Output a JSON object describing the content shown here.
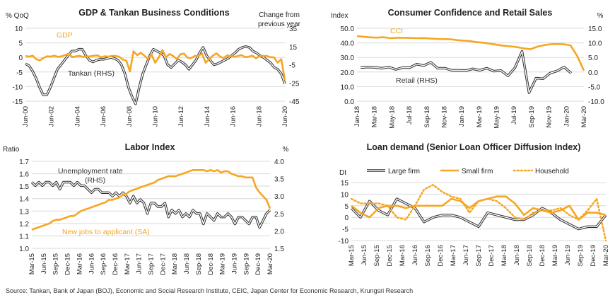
{
  "source": "Source: Tankan, Bank of Japan (BOJ), Economic and Social Research Institute, CEIC, Japan Center for Economic Research, Krungsri Research",
  "colors": {
    "orange": "#F5A623",
    "black": "#2b2b2b",
    "grey": "#9a9a9a",
    "grid": "#d9d9d9"
  },
  "chart_data": [
    {
      "id": "gdp_tankan",
      "type": "line",
      "title": "GDP & Tankan Business Conditions",
      "left_axis_label": "% QoQ",
      "right_axis_label": "Change from previous year",
      "x_labels": [
        "Jun-00",
        "Jun-02",
        "Jun-04",
        "Jun-06",
        "Jun-08",
        "Jun-10",
        "Jun-12",
        "Jun-14",
        "Jun-16",
        "Jun-18",
        "Jun-20"
      ],
      "ylim_left": [
        -15,
        10
      ],
      "yticks_left": [
        10,
        5,
        0,
        -5,
        -10,
        -15
      ],
      "ylim_right": [
        -45,
        35
      ],
      "yticks_right": [
        35,
        15,
        -5,
        -25,
        -45
      ],
      "grid": "horizontal",
      "series": [
        {
          "name": "GDP",
          "axis": "left",
          "color": "orange",
          "style": "solid",
          "y": [
            0.5,
            0.3,
            0.6,
            -0.6,
            -1,
            -0.2,
            0.4,
            0.3,
            0.6,
            0.2,
            0.4,
            0.8,
            1.3,
            0.1,
            0.4,
            0.5,
            0.2,
            0.3,
            0.4,
            0.6,
            0.7,
            0.1,
            0.4,
            0.3,
            0.5,
            0.5,
            0.3,
            -0.7,
            -1.1,
            -4.8,
            2.1,
            0.8,
            1.6,
            0.6,
            -0.5,
            1,
            -1.8,
            0,
            2.6,
            0.1,
            1.2,
            0.5,
            -0.6,
            1.1,
            1.3,
            -0.1,
            -0.2,
            0.5,
            0.6,
            1.3,
            -1.8,
            -0.6,
            0.6,
            1.4,
            0.3,
            -0.2,
            0.7,
            0.5,
            0.2,
            0.5,
            0.8,
            0.1,
            0.3,
            0.6,
            -0.3,
            0.5,
            0.5,
            0.5,
            0.1,
            0,
            -1.8,
            -0.6,
            -7.9
          ]
        },
        {
          "name": "Tankan (RHS)",
          "axis": "right",
          "color": "black",
          "style": "double",
          "y": [
            -4,
            -6,
            -12,
            -20,
            -30,
            -38,
            -38,
            -30,
            -20,
            -10,
            -5,
            0,
            5,
            10,
            10,
            12,
            12,
            5,
            0,
            -2,
            0,
            1,
            1,
            2,
            3,
            2,
            0,
            -5,
            -15,
            -30,
            -40,
            -48,
            -30,
            -15,
            -5,
            5,
            12,
            10,
            8,
            5,
            -5,
            -8,
            -4,
            0,
            -2,
            -5,
            -10,
            -5,
            0,
            8,
            14,
            5,
            0,
            -5,
            -4,
            -2,
            0,
            2,
            5,
            8,
            12,
            14,
            15,
            14,
            10,
            8,
            5,
            3,
            0,
            -3,
            -8,
            -10,
            -15,
            -26
          ]
        }
      ],
      "annotations": [
        "GDP",
        "Tankan (RHS)"
      ]
    },
    {
      "id": "consumer",
      "type": "line",
      "title": "Consumer Confidence and Retail Sales",
      "left_axis_label": "Index",
      "right_axis_label": "%",
      "x_labels": [
        "Jan-18",
        "Mar-18",
        "May-18",
        "Jul-18",
        "Sep-18",
        "Nov-18",
        "Jan-19",
        "Mar-19",
        "May-19",
        "Jul-19",
        "Sep-19",
        "Nov-19",
        "Jan-20",
        "Mar-20"
      ],
      "ylim_left": [
        0,
        50
      ],
      "yticks_left": [
        "50.0",
        "40.0",
        "30.0",
        "20.0",
        "10.0",
        "0.0"
      ],
      "ylim_right": [
        -10,
        15
      ],
      "yticks_right": [
        "15.0",
        "10.0",
        "5.0",
        "0.0",
        "-5.0",
        "-10.0"
      ],
      "grid": "horizontal",
      "series": [
        {
          "name": "CCI",
          "axis": "left",
          "color": "orange",
          "style": "solid",
          "y": [
            44.6,
            44.2,
            43.8,
            43.6,
            43.9,
            43.2,
            43.5,
            43.5,
            43.4,
            43.2,
            43.3,
            43.0,
            42.7,
            42.6,
            42.5,
            41.9,
            41.5,
            41.2,
            40.5,
            40.1,
            39.4,
            38.7,
            38.0,
            37.6,
            37.1,
            36.2,
            35.7,
            37.4,
            38.4,
            39.1,
            39.2,
            39.1,
            38.3,
            30.9,
            21.0
          ]
        },
        {
          "name": "Retail (RHS)",
          "axis": "right",
          "color": "black",
          "style": "double",
          "y": [
            1.5,
            1.7,
            1.6,
            1.3,
            1.7,
            0.9,
            1.5,
            1.5,
            2.7,
            2.2,
            3.3,
            1.3,
            1.3,
            0.6,
            0.6,
            0.5,
            1.1,
            0.6,
            1.3,
            0.3,
            0.5,
            -1.3,
            1.5,
            7.1,
            -7.1,
            -2.1,
            -2.3,
            -0.4,
            0.4,
            1.7,
            -0.4
          ]
        }
      ],
      "annotations": [
        "CCI",
        "Retail (RHS)"
      ]
    },
    {
      "id": "labor",
      "type": "line",
      "title": "Labor Index",
      "left_axis_label": "Ratio",
      "right_axis_label": "%",
      "x_labels": [
        "Mar-15",
        "Jun-15",
        "Sep-15",
        "Dec-15",
        "Mar-16",
        "Jun-16",
        "Sep-16",
        "Dec-16",
        "Mar-17",
        "Jun-17",
        "Sep-17",
        "Dec-17",
        "Mar-18",
        "Jun-18",
        "Sep-18",
        "Dec-18",
        "Mar-19",
        "Jun-19",
        "Sep-19",
        "Dec-19",
        "Mar-20"
      ],
      "ylim_left": [
        1.0,
        1.7
      ],
      "yticks_left": [
        "1.7",
        "1.6",
        "1.5",
        "1.4",
        "1.3",
        "1.2",
        "1.1",
        "1.0"
      ],
      "ylim_right": [
        1.5,
        4.0
      ],
      "yticks_right": [
        "4.0",
        "3.5",
        "3.0",
        "2.5",
        "2.0",
        "1.5"
      ],
      "grid": "horizontal",
      "series": [
        {
          "name": "Unemployment rate (RHS)",
          "axis": "right",
          "color": "black",
          "style": "double",
          "y": [
            3.4,
            3.3,
            3.4,
            3.3,
            3.4,
            3.4,
            3.3,
            3.4,
            3.2,
            3.4,
            3.4,
            3.4,
            3.3,
            3.4,
            3.3,
            3.3,
            3.2,
            3.1,
            3.2,
            3.2,
            3.1,
            3.1,
            3.1,
            3.0,
            3.1,
            3.0,
            3.1,
            3.0,
            2.8,
            3.0,
            2.8,
            2.9,
            2.8,
            2.5,
            2.8,
            2.8,
            2.7,
            2.7,
            2.8,
            2.4,
            2.6,
            2.5,
            2.6,
            2.4,
            2.5,
            2.4,
            2.6,
            2.5,
            2.5,
            2.2,
            2.5,
            2.4,
            2.3,
            2.5,
            2.4,
            2.4,
            2.5,
            2.4,
            2.2,
            2.4,
            2.4,
            2.3,
            2.2,
            2.4,
            2.4,
            2.1,
            2.3,
            2.5,
            2.6
          ]
        },
        {
          "name": "New jobs to applicant (SA)",
          "axis": "left",
          "color": "orange",
          "style": "solid",
          "y": [
            1.15,
            1.16,
            1.17,
            1.18,
            1.19,
            1.2,
            1.22,
            1.23,
            1.23,
            1.24,
            1.25,
            1.26,
            1.26,
            1.28,
            1.3,
            1.31,
            1.32,
            1.33,
            1.34,
            1.35,
            1.36,
            1.37,
            1.39,
            1.39,
            1.4,
            1.41,
            1.43,
            1.44,
            1.46,
            1.47,
            1.48,
            1.49,
            1.5,
            1.51,
            1.52,
            1.53,
            1.55,
            1.56,
            1.57,
            1.58,
            1.58,
            1.58,
            1.59,
            1.6,
            1.61,
            1.62,
            1.63,
            1.63,
            1.63,
            1.63,
            1.62,
            1.63,
            1.62,
            1.63,
            1.61,
            1.62,
            1.62,
            1.6,
            1.59,
            1.58,
            1.58,
            1.57,
            1.57,
            1.57,
            1.49,
            1.45,
            1.42,
            1.39,
            1.32
          ]
        }
      ],
      "annotations": [
        "Unemployment rate",
        "(RHS)",
        "New jobs to applicant (SA)"
      ]
    },
    {
      "id": "loan",
      "type": "line",
      "title": "Loan demand (Senior Loan Officer Diffusion Index)",
      "left_axis_label": "DI",
      "x_labels": [
        "Mar-15",
        "Jun-15",
        "Sep-15",
        "Dec-15",
        "Mar-16",
        "Jun-16",
        "Sep-16",
        "Dec-16",
        "Mar-17",
        "Jun-17",
        "Sep-17",
        "Dec-17",
        "Mar-18",
        "Jun-18",
        "Sep-18",
        "Dec-18",
        "Mar-19",
        "Jun-19",
        "Sep-19",
        "Dec-19",
        "Mar-20"
      ],
      "ylim": [
        -10,
        15
      ],
      "yticks": [
        15,
        10,
        5,
        0,
        -5,
        -10
      ],
      "grid": "horizontal",
      "legend": "top",
      "series": [
        {
          "name": "Large firm",
          "color": "black",
          "style": "double",
          "y": [
            4,
            0,
            7,
            3,
            1,
            8,
            6,
            4,
            -2,
            0,
            1,
            1,
            0,
            -2,
            -4,
            2,
            1,
            0,
            -1,
            -1,
            1,
            4,
            2,
            -1,
            -3,
            -5,
            -4,
            -4,
            1
          ]
        },
        {
          "name": "Small firm",
          "color": "orange",
          "style": "solid",
          "y": [
            5,
            2,
            0,
            4,
            5,
            5,
            4,
            5,
            5,
            5,
            5,
            8,
            7,
            4,
            7,
            8,
            9,
            9,
            6,
            1,
            4,
            3,
            2,
            3,
            5,
            -1,
            2,
            2,
            1
          ]
        },
        {
          "name": "Household",
          "color": "orange",
          "style": "dotted",
          "y": [
            8,
            6,
            6,
            6,
            5,
            0,
            -1,
            5,
            12,
            14,
            11,
            9,
            8,
            2,
            7,
            8,
            7,
            4,
            0,
            -1,
            2,
            3,
            3,
            4,
            1,
            -1,
            3,
            8,
            -10
          ]
        }
      ]
    }
  ]
}
